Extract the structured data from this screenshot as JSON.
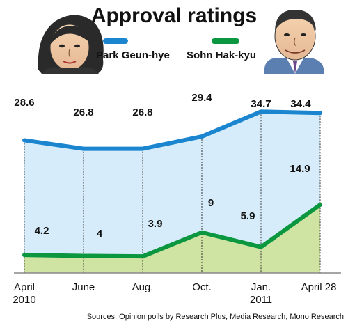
{
  "chart_data": {
    "type": "line",
    "title": "Approval ratings",
    "categories": [
      "April\n2010",
      "June",
      "Aug.",
      "Oct.",
      "Jan.\n2011",
      "April 28"
    ],
    "series": [
      {
        "name": "Park Geun-hye",
        "color": "#1b86cf",
        "fill": "#d7ecfa",
        "values": [
          28.6,
          26.8,
          26.8,
          29.4,
          34.7,
          34.4
        ],
        "labels": [
          "28.6",
          "26.8",
          "26.8",
          "29.4",
          "34.7",
          "34.4"
        ]
      },
      {
        "name": "Sohn Hak-kyu",
        "color": "#0b9640",
        "fill": "#cfe3a3",
        "values": [
          4.2,
          4,
          3.9,
          9,
          5.9,
          14.9
        ],
        "labels": [
          "4.2",
          "4",
          "3.9",
          "9",
          "5.9",
          "14.9"
        ]
      }
    ],
    "xlabel": "",
    "ylabel": "",
    "ylim": [
      0,
      36
    ],
    "grid": "vertical dashed",
    "legend": "top",
    "source": "Sources: Opinion polls by Research Plus, Media Research, Mono Research"
  }
}
